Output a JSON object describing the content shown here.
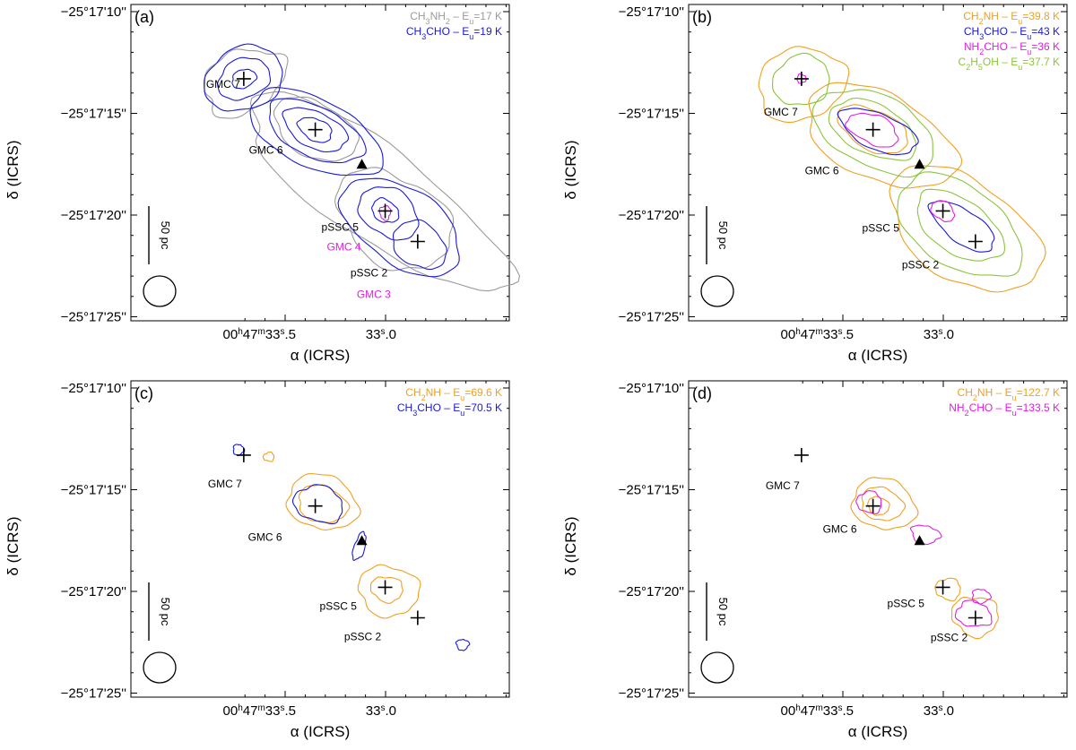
{
  "figure": {
    "colors": {
      "CH3NH2": "#9b9b9b",
      "CH3CHO": "#1a1ad6",
      "CH2NH": "#f0a020",
      "NH2CHO": "#e020e0",
      "C2H5OH": "#8cc43c",
      "marker": "#000000"
    }
  },
  "chart_data": [
    {
      "type": "contour",
      "panel_label": "(a)",
      "xlabel": "α (ICRS)",
      "ylabel": "δ (ICRS)",
      "x_ticks": [
        {
          "value": 33.5,
          "parts": [
            "00",
            "h",
            "47",
            "m",
            "33",
            "s",
            ".5"
          ]
        },
        {
          "value": 33.0,
          "parts": [
            "",
            "",
            "",
            "",
            "33",
            "s",
            ".0"
          ]
        }
      ],
      "y_ticks": [
        "−25°17'10''",
        "−25°17'15''",
        "−25°17'20''",
        "−25°17'25''"
      ],
      "legend": [
        {
          "species": "CH3NH2",
          "main": [
            "CH",
            "3",
            "NH",
            "2"
          ],
          "eu": "17 K",
          "color_key": "CH3NH2"
        },
        {
          "species": "CH3CHO",
          "main": [
            "CH",
            "3",
            "CHO"
          ],
          "eu": "19 K",
          "color_key": "CH3CHO"
        }
      ],
      "sources": [
        {
          "name": "GMC 7",
          "label": "GMC 7",
          "color": "#000000",
          "marker": "cross"
        },
        {
          "name": "GMC 6",
          "label": "GMC 6",
          "color": "#000000",
          "marker": "cross"
        },
        {
          "name": "pSSC 5",
          "label": "pSSC 5",
          "color": "#000000",
          "marker": "cross"
        },
        {
          "name": "GMC 4",
          "label": "GMC 4",
          "color": "#e020e0",
          "marker": "none"
        },
        {
          "name": "pSSC 2",
          "label": "pSSC 2",
          "color": "#000000",
          "marker": "cross"
        },
        {
          "name": "GMC 3",
          "label": "GMC 3",
          "color": "#e020e0",
          "marker": "none"
        }
      ],
      "scale_bar": "50 pc",
      "triangle_marker": true,
      "beam": "ellipse"
    },
    {
      "type": "contour",
      "panel_label": "(b)",
      "xlabel": "α (ICRS)",
      "ylabel": "δ (ICRS)",
      "x_ticks": [
        {
          "value": 33.5,
          "parts": [
            "00",
            "h",
            "47",
            "m",
            "33",
            "s",
            ".5"
          ]
        },
        {
          "value": 33.0,
          "parts": [
            "",
            "",
            "",
            "",
            "33",
            "s",
            ".0"
          ]
        }
      ],
      "y_ticks": [
        "−25°17'10''",
        "−25°17'15''",
        "−25°17'20''",
        "−25°17'25''"
      ],
      "legend": [
        {
          "species": "CH2NH",
          "main": [
            "CH",
            "2",
            "NH"
          ],
          "eu": "39.8 K",
          "color_key": "CH2NH"
        },
        {
          "species": "CH3CHO",
          "main": [
            "CH",
            "3",
            "CHO"
          ],
          "eu": "43 K",
          "color_key": "CH3CHO"
        },
        {
          "species": "NH2CHO",
          "main": [
            "NH",
            "2",
            "CHO"
          ],
          "eu": "36 K",
          "color_key": "NH2CHO"
        },
        {
          "species": "C2H5OH",
          "main": [
            "C",
            "2",
            "H",
            "5",
            "OH"
          ],
          "eu": "37.7 K",
          "color_key": "C2H5OH"
        }
      ],
      "sources": [
        {
          "name": "GMC 7",
          "label": "GMC 7",
          "color": "#000000",
          "marker": "cross"
        },
        {
          "name": "GMC 6",
          "label": "GMC 6",
          "color": "#000000",
          "marker": "cross"
        },
        {
          "name": "pSSC 5",
          "label": "pSSC 5",
          "color": "#000000",
          "marker": "cross"
        },
        {
          "name": "pSSC 2",
          "label": "pSSC 2",
          "color": "#000000",
          "marker": "cross"
        }
      ],
      "scale_bar": "50 pc",
      "triangle_marker": true,
      "beam": "ellipse"
    },
    {
      "type": "contour",
      "panel_label": "(c)",
      "xlabel": "α (ICRS)",
      "ylabel": "δ (ICRS)",
      "x_ticks": [
        {
          "value": 33.5,
          "parts": [
            "00",
            "h",
            "47",
            "m",
            "33",
            "s",
            ".5"
          ]
        },
        {
          "value": 33.0,
          "parts": [
            "",
            "",
            "",
            "",
            "33",
            "s",
            ".0"
          ]
        }
      ],
      "y_ticks": [
        "−25°17'10''",
        "−25°17'15''",
        "−25°17'20''",
        "−25°17'25''"
      ],
      "legend": [
        {
          "species": "CH2NH",
          "main": [
            "CH",
            "2",
            "NH"
          ],
          "eu": "69.6 K",
          "color_key": "CH2NH"
        },
        {
          "species": "CH3CHO",
          "main": [
            "CH",
            "3",
            "CHO"
          ],
          "eu": "70.5 K",
          "color_key": "CH3CHO"
        }
      ],
      "sources": [
        {
          "name": "GMC 7",
          "label": "GMC 7",
          "color": "#000000",
          "marker": "cross"
        },
        {
          "name": "GMC 6",
          "label": "GMC 6",
          "color": "#000000",
          "marker": "cross"
        },
        {
          "name": "pSSC 5",
          "label": "pSSC 5",
          "color": "#000000",
          "marker": "cross"
        },
        {
          "name": "pSSC 2",
          "label": "pSSC 2",
          "color": "#000000",
          "marker": "cross"
        }
      ],
      "scale_bar": "50 pc",
      "triangle_marker": true,
      "beam": "ellipse"
    },
    {
      "type": "contour",
      "panel_label": "(d)",
      "xlabel": "α (ICRS)",
      "ylabel": "δ (ICRS)",
      "x_ticks": [
        {
          "value": 33.5,
          "parts": [
            "00",
            "h",
            "47",
            "m",
            "33",
            "s",
            ".5"
          ]
        },
        {
          "value": 33.0,
          "parts": [
            "",
            "",
            "",
            "",
            "33",
            "s",
            ".0"
          ]
        }
      ],
      "y_ticks": [
        "−25°17'10''",
        "−25°17'15''",
        "−25°17'20''",
        "−25°17'25''"
      ],
      "legend": [
        {
          "species": "CH2NH",
          "main": [
            "CH",
            "2",
            "NH"
          ],
          "eu": "122.7 K",
          "color_key": "CH2NH"
        },
        {
          "species": "NH2CHO",
          "main": [
            "NH",
            "2",
            "CHO"
          ],
          "eu": "133.5 K",
          "color_key": "NH2CHO"
        }
      ],
      "sources": [
        {
          "name": "GMC 7",
          "label": "GMC 7",
          "color": "#000000",
          "marker": "cross"
        },
        {
          "name": "GMC 6",
          "label": "GMC 6",
          "color": "#000000",
          "marker": "cross"
        },
        {
          "name": "pSSC 5",
          "label": "pSSC 5",
          "color": "#000000",
          "marker": "cross"
        },
        {
          "name": "pSSC 2",
          "label": "pSSC 2",
          "color": "#000000",
          "marker": "cross"
        }
      ],
      "scale_bar": "50 pc",
      "triangle_marker": true,
      "beam": "ellipse"
    }
  ]
}
